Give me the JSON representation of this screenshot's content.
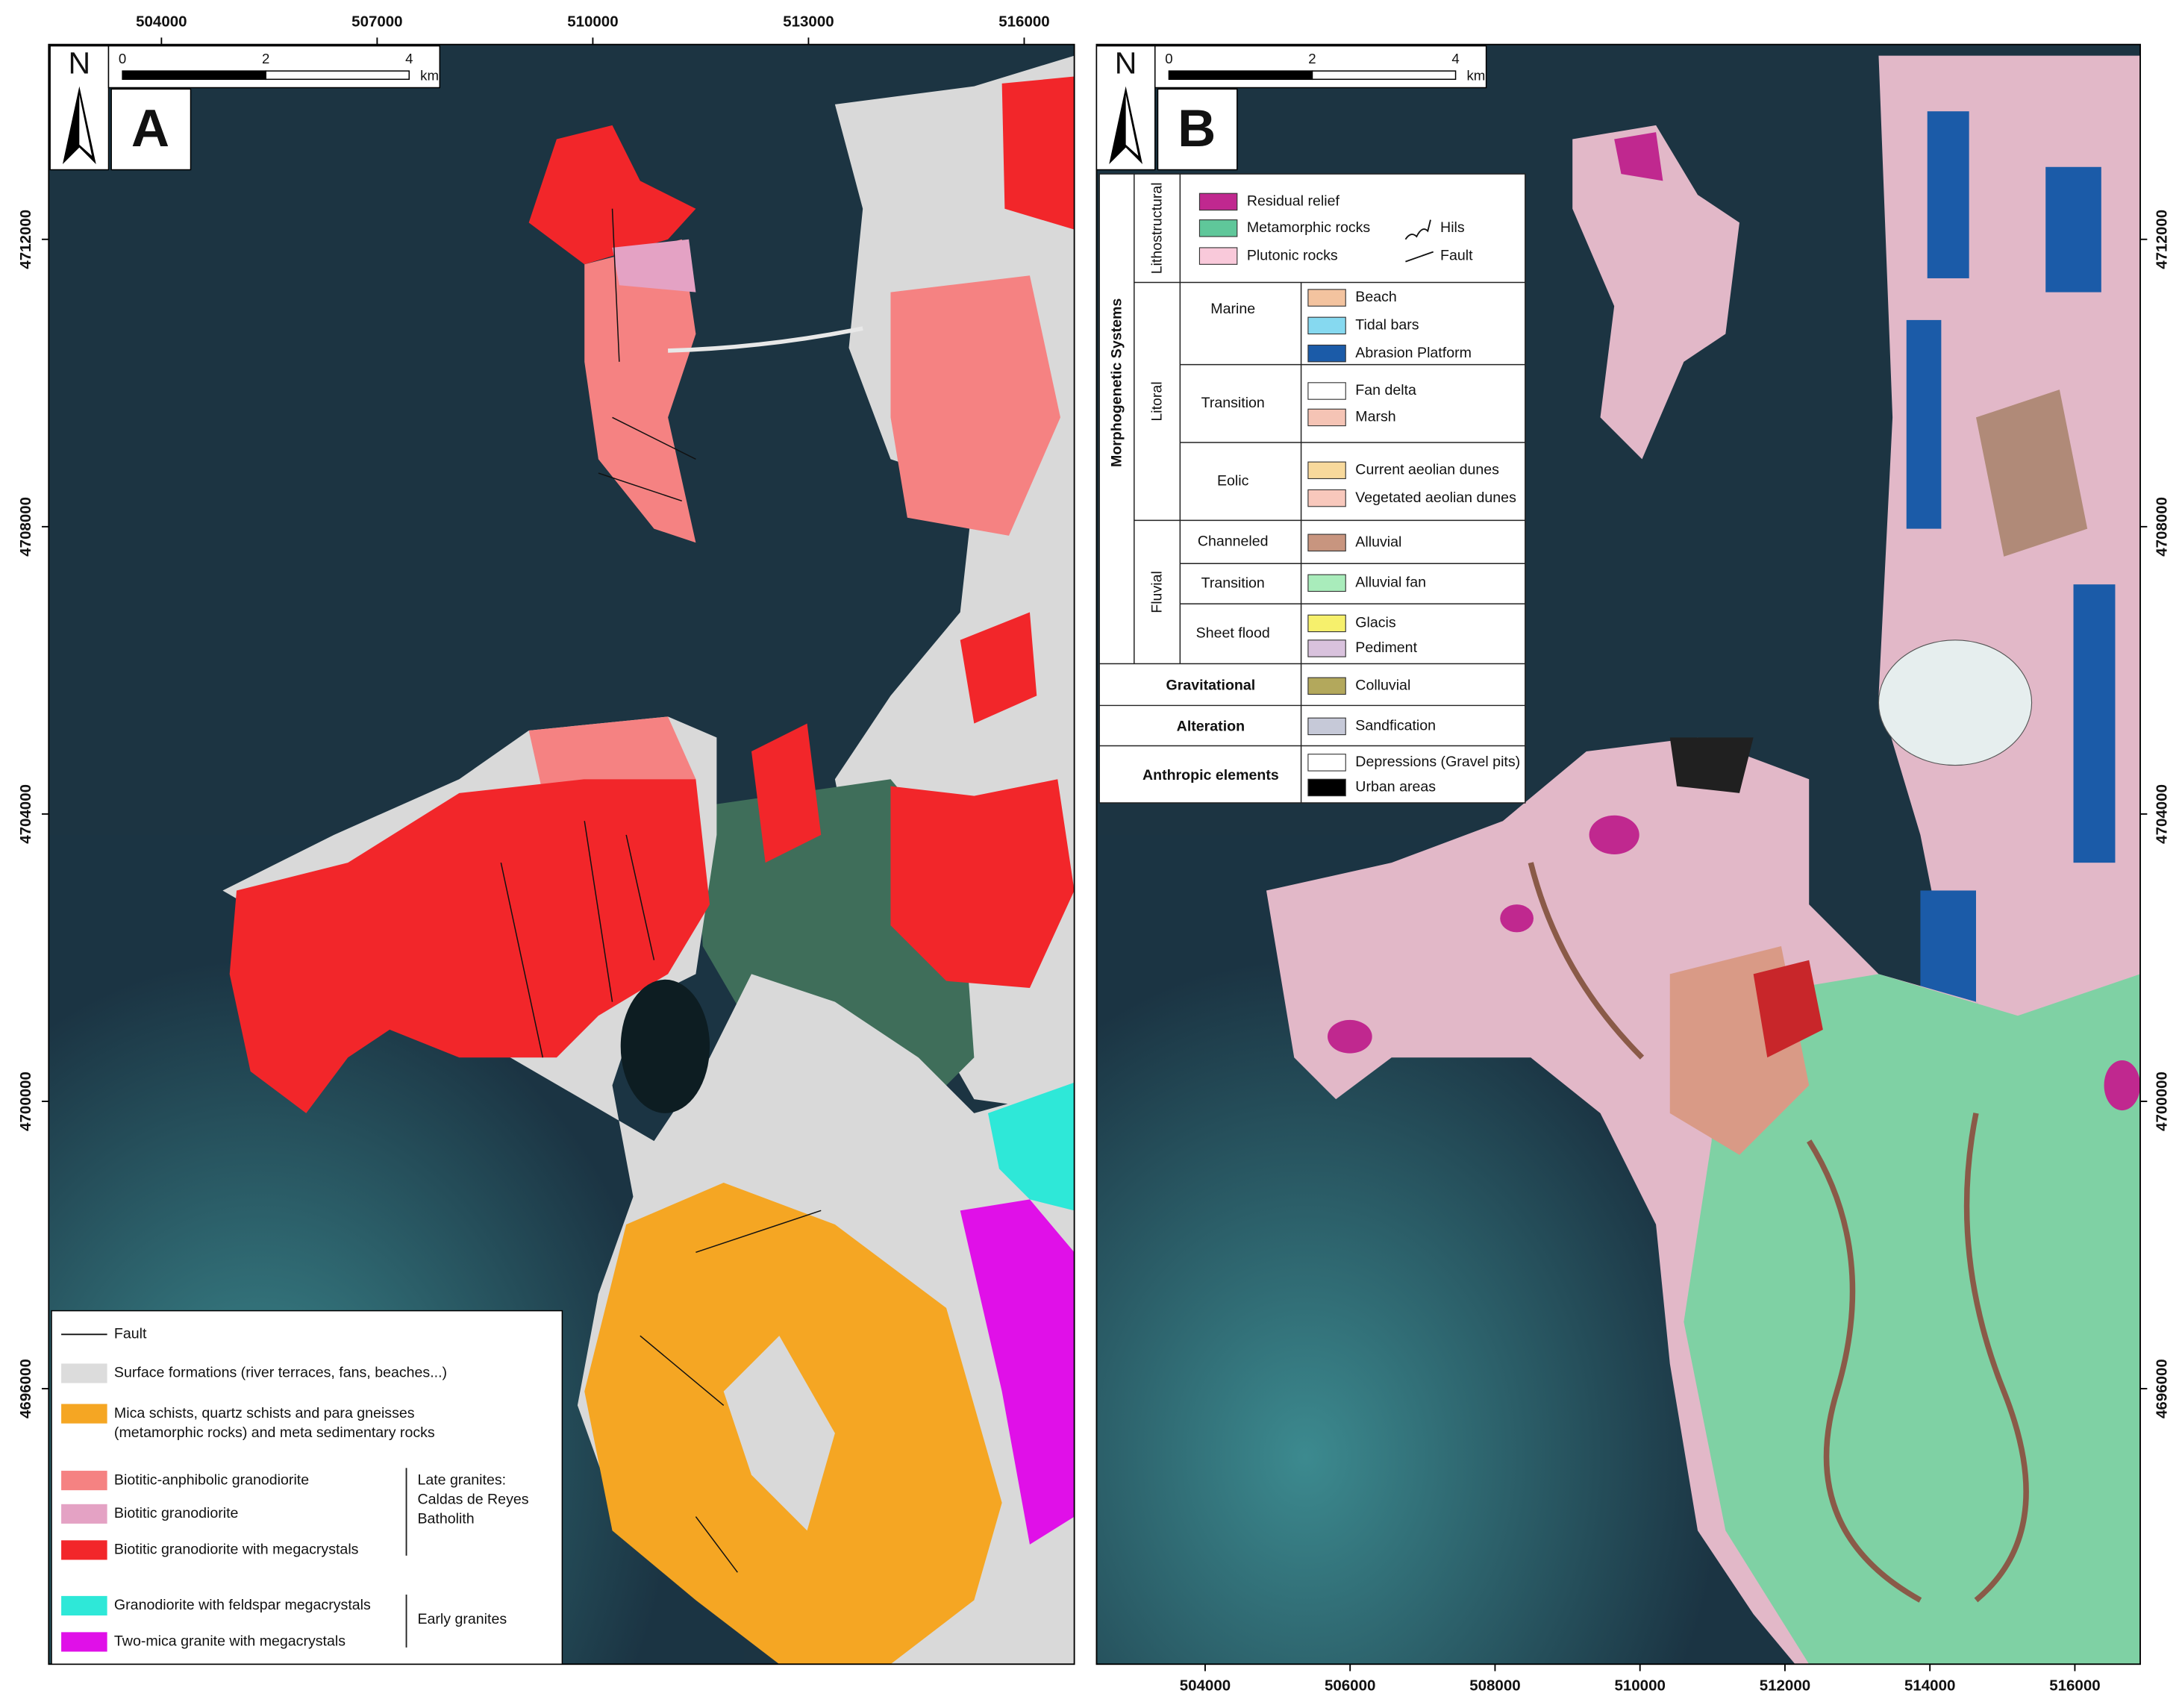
{
  "panels": [
    {
      "label": "A",
      "north": "N",
      "scale_bar": {
        "ticks": [
          0,
          2,
          4
        ],
        "unit": "km"
      },
      "xlim": [
        502432,
        516697
      ],
      "ylim": [
        4692165,
        4714712
      ],
      "xticks": [
        504000,
        507000,
        510000,
        513000,
        516000
      ],
      "yticks": [
        4712000,
        4708000,
        4704000,
        4700000,
        4696000
      ],
      "legend": {
        "items": [
          {
            "label": "Fault"
          },
          {
            "label": "Surface formations (river terraces, fans, beaches...)",
            "color": "#dcdcdc"
          },
          {
            "label": [
              "Mica schists, quartz schists and para gneisses",
              "(metamorphic rocks) and meta sedimentary rocks"
            ],
            "color": "#f5a623"
          },
          {
            "label": "Biotitic-anphibolic granodiorite",
            "color": "#f58282"
          },
          {
            "label": "Biotitic granodiorite",
            "color": "#e4a2c4"
          },
          {
            "label": "Biotitic granodiorite with megacrystals",
            "color": "#f2262a"
          },
          {
            "label": "Granodiorite with feldspar megacrystals",
            "color": "#2ee8d8"
          },
          {
            "label": "Two-mica granite with megacrystals",
            "color": "#e010e8"
          }
        ],
        "groups": [
          {
            "lines": [
              "Late granites:",
              "Caldas de Reyes",
              "Batholith"
            ]
          },
          {
            "lines": [
              "Early granites"
            ]
          }
        ]
      }
    },
    {
      "label": "B",
      "north": "N",
      "scale_bar": {
        "ticks": [
          0,
          2,
          4
        ],
        "unit": "km"
      },
      "xlim": [
        502502,
        516902
      ],
      "ylim": [
        4692165,
        4714712
      ],
      "xticks": [
        504000,
        506000,
        508000,
        510000,
        512000,
        514000,
        516000
      ],
      "yticks": [
        4712000,
        4708000,
        4704000,
        4700000,
        4696000
      ],
      "legend": {
        "title": "Morphogenetic Systems",
        "sections": [
          {
            "name": "Lithostructural",
            "items": [
              {
                "label": "Residual relief",
                "color": "#c0288f"
              },
              {
                "label": "Metamorphic rocks",
                "color": "#5fc79a"
              },
              {
                "label": "Plutonic rocks",
                "color": "#f9c9da"
              }
            ],
            "symbols": [
              {
                "label": "Hils"
              },
              {
                "label": "Fault"
              }
            ]
          },
          {
            "name": "Litoral",
            "groups": [
              {
                "name": "Marine",
                "items": [
                  {
                    "label": "Beach",
                    "color": "#f3c39f"
                  },
                  {
                    "label": "Tidal bars",
                    "color": "#86d9f0"
                  },
                  {
                    "label": "Abrasion Platform",
                    "color": "#1b5ba8"
                  }
                ]
              },
              {
                "name": "Transition",
                "items": [
                  {
                    "label": "Fan delta",
                    "color": "#ffffff"
                  },
                  {
                    "label": "Marsh",
                    "color": "#f5c4b5"
                  }
                ]
              },
              {
                "name": "Eolic",
                "items": [
                  {
                    "label": "Current aeolian dunes",
                    "color": "#f8d99c"
                  },
                  {
                    "label": "Vegetated aeolian dunes",
                    "color": "#f8c8bc"
                  }
                ]
              }
            ]
          },
          {
            "name": "Fluvial",
            "groups": [
              {
                "name": "Channeled",
                "items": [
                  {
                    "label": "Alluvial",
                    "color": "#c8957f"
                  }
                ]
              },
              {
                "name": "Transition",
                "items": [
                  {
                    "label": "Alluvial fan",
                    "color": "#a9ecbb"
                  }
                ]
              },
              {
                "name": "Sheet flood",
                "items": [
                  {
                    "label": "Glacis",
                    "color": "#f6f06c"
                  },
                  {
                    "label": "Pediment",
                    "color": "#d9c2dd"
                  }
                ]
              }
            ]
          },
          {
            "name": "Gravitational",
            "items": [
              {
                "label": "Colluvial",
                "color": "#b3a85c"
              }
            ]
          },
          {
            "name": "Alteration",
            "items": [
              {
                "label": "Sandfication",
                "color": "#c6c9d8"
              }
            ]
          },
          {
            "name": "Anthropic elements",
            "items": [
              {
                "label": "Depressions (Gravel pits)",
                "color": "#ffffff"
              },
              {
                "label": "Urban areas",
                "color": "#000000"
              }
            ]
          }
        ]
      }
    }
  ]
}
